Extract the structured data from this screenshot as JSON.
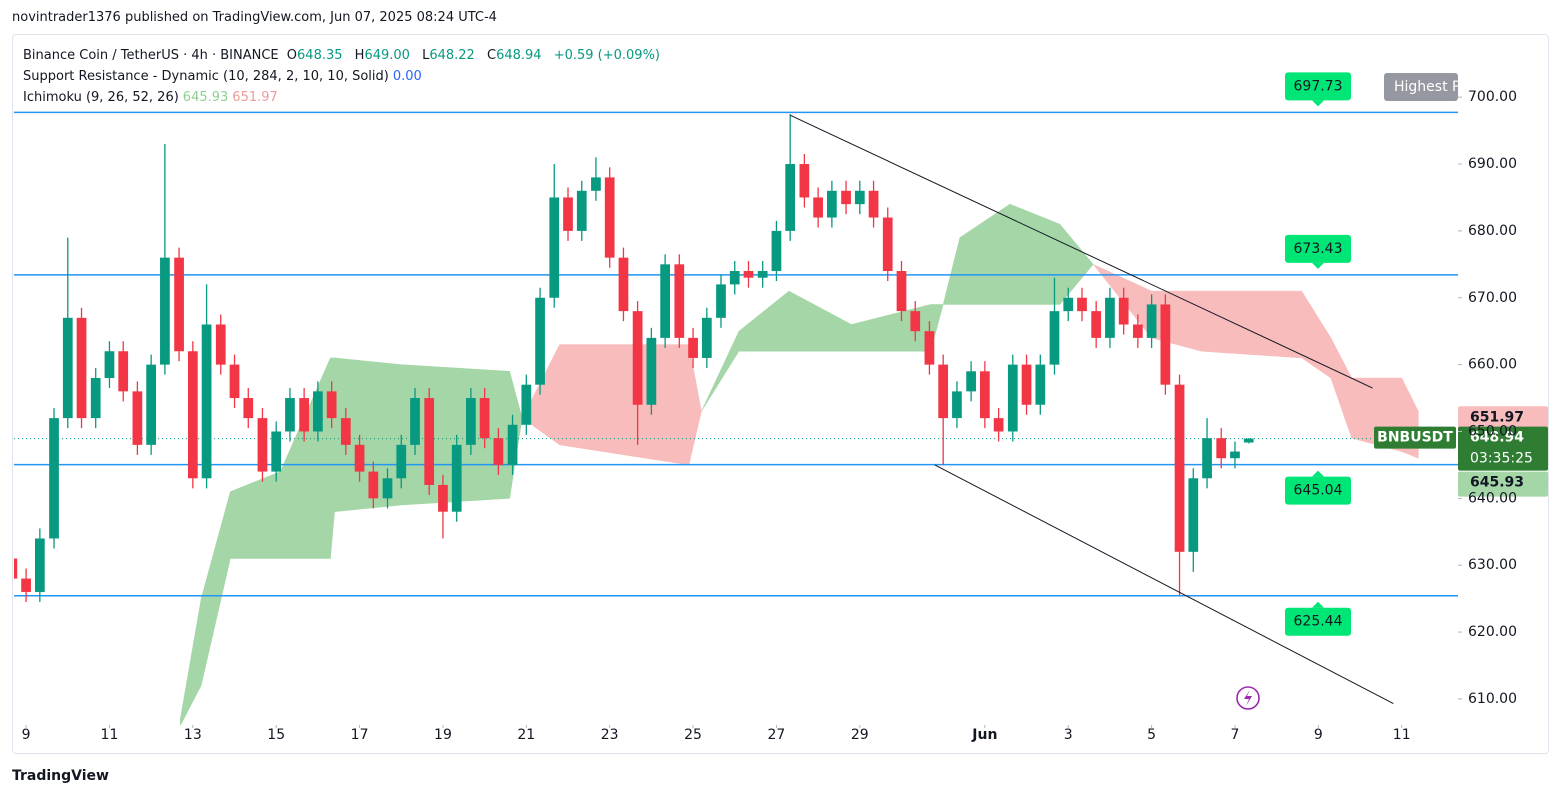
{
  "header": {
    "published": "novintrader1376 published on TradingView.com, Jun 07, 2025 08:24 UTC-4"
  },
  "legend": {
    "symbol": "Binance Coin / TetherUS · 4h · BINANCE",
    "ohlc_keys": [
      "O",
      "H",
      "L",
      "C"
    ],
    "ohlc_values": [
      "648.35",
      "649.00",
      "648.22",
      "648.94"
    ],
    "change": "+0.59 (+0.09%)",
    "sr_name": "Support Resistance - Dynamic (10, 284, 2, 10, 10, Solid)",
    "sr_value": "0.00",
    "ichimoku_name": "Ichimoku (9, 26, 52, 26)"
  },
  "footer": {
    "brand": "TradingView"
  },
  "chart_data": {
    "type": "candlestick",
    "symbol_tag": "BNBUSDT",
    "countdown": "03:35:25",
    "highest_label": "Highest P",
    "up_color": "#089981",
    "down_color": "#f23645",
    "xlim": [
      -0.29,
      34.35
    ],
    "ylim": [
      606.1,
      709.3
    ],
    "xticks": [
      {
        "value": 0,
        "label": "9"
      },
      {
        "value": 2,
        "label": "11"
      },
      {
        "value": 4,
        "label": "13"
      },
      {
        "value": 6,
        "label": "15"
      },
      {
        "value": 8,
        "label": "17"
      },
      {
        "value": 10,
        "label": "19"
      },
      {
        "value": 12,
        "label": "21"
      },
      {
        "value": 14,
        "label": "23"
      },
      {
        "value": 16,
        "label": "25"
      },
      {
        "value": 18,
        "label": "27"
      },
      {
        "value": 20,
        "label": "29"
      },
      {
        "value": 23,
        "label": "Jun"
      },
      {
        "value": 25,
        "label": "3"
      },
      {
        "value": 27,
        "label": "5"
      },
      {
        "value": 29,
        "label": "7"
      },
      {
        "value": 31,
        "label": "9"
      },
      {
        "value": 33,
        "label": "11"
      }
    ],
    "yticks": [
      {
        "value": 610,
        "label": "610.00"
      },
      {
        "value": 620,
        "label": "620.00"
      },
      {
        "value": 630,
        "label": "630.00"
      },
      {
        "value": 640,
        "label": "640.00"
      },
      {
        "value": 650,
        "label": "650.00"
      },
      {
        "value": 660,
        "label": "660.00"
      },
      {
        "value": 670,
        "label": "670.00"
      },
      {
        "value": 680,
        "label": "680.00"
      },
      {
        "value": 690,
        "label": "690.00"
      },
      {
        "value": 700,
        "label": "700.00"
      }
    ],
    "x": [
      -0.33,
      0,
      0.33,
      0.67,
      1,
      1.33,
      1.67,
      2,
      2.33,
      2.67,
      3,
      3.33,
      3.67,
      4,
      4.33,
      4.67,
      5,
      5.33,
      5.67,
      6,
      6.33,
      6.67,
      7,
      7.33,
      7.67,
      8,
      8.33,
      8.67,
      9,
      9.33,
      9.67,
      10,
      10.33,
      10.67,
      11,
      11.33,
      11.67,
      12,
      12.33,
      12.67,
      13,
      13.33,
      13.67,
      14,
      14.33,
      14.67,
      15,
      15.33,
      15.67,
      16,
      16.33,
      16.67,
      17,
      17.33,
      17.67,
      18,
      18.33,
      18.67,
      19,
      19.33,
      19.67,
      20,
      20.33,
      20.67,
      21,
      21.33,
      21.67,
      22,
      22.33,
      22.67,
      23,
      23.33,
      23.67,
      24,
      24.33,
      24.67,
      25,
      25.33,
      25.67,
      26,
      26.33,
      26.67,
      27,
      27.33,
      27.67,
      28,
      28.33,
      28.67,
      29,
      29.33
    ],
    "open": [
      631,
      628,
      626,
      634,
      652,
      667,
      652,
      658,
      662,
      656,
      648,
      660,
      676,
      662,
      643,
      666,
      660,
      655,
      652,
      644,
      650,
      655,
      650,
      656,
      652,
      648,
      644,
      640,
      643,
      648,
      655,
      642,
      638,
      648,
      655,
      649,
      645,
      651,
      657,
      670,
      685,
      680,
      686,
      688,
      676,
      668,
      654,
      664,
      675,
      664,
      661,
      667,
      672,
      674,
      673,
      674,
      680,
      690,
      685,
      682,
      686,
      684,
      686,
      682,
      674,
      668,
      665,
      660,
      652,
      656,
      659,
      652,
      650,
      660,
      654,
      660,
      668,
      670,
      668,
      664,
      670,
      666,
      664,
      669,
      657,
      632,
      643,
      649,
      646,
      648.35
    ],
    "high": [
      632.5,
      629.5,
      635.5,
      653.5,
      679,
      668.5,
      659.5,
      663.5,
      663.5,
      657.5,
      661.5,
      693,
      677.5,
      663.5,
      672,
      667.5,
      661.5,
      656.5,
      653.5,
      651.5,
      656.5,
      656.5,
      657.5,
      657.5,
      653.5,
      649.5,
      645.5,
      644.5,
      649.5,
      656.5,
      656.5,
      643.5,
      649.5,
      656.5,
      656.5,
      650.5,
      652.5,
      658.5,
      671.5,
      690,
      686.5,
      687.5,
      691,
      689.5,
      677.5,
      669.5,
      665.5,
      676.5,
      676.5,
      665.5,
      668.5,
      673.5,
      675.5,
      675.5,
      675.5,
      681.5,
      697.5,
      691.5,
      686.5,
      687.5,
      687.5,
      687.5,
      687.5,
      683.5,
      675.5,
      669.5,
      666.5,
      661.5,
      657.5,
      660.5,
      660.5,
      653.5,
      661.5,
      661.5,
      661.5,
      673,
      671.5,
      671.5,
      669.5,
      671.5,
      671.5,
      667.5,
      670.5,
      670.5,
      658.5,
      644.5,
      652,
      650.5,
      648.5,
      649
    ],
    "low": [
      626.5,
      624.5,
      624.5,
      632.5,
      650.5,
      650.5,
      650.5,
      656.5,
      654.5,
      646.5,
      646.5,
      658.5,
      660.5,
      641.5,
      641.5,
      658.5,
      653.5,
      650.5,
      642.5,
      642.5,
      648.5,
      648.5,
      648.5,
      650.5,
      646.5,
      642.5,
      638.5,
      638.5,
      641.5,
      646.5,
      640.5,
      634,
      636.5,
      646.5,
      647.5,
      643.5,
      643.5,
      649.5,
      655.5,
      668.5,
      678.5,
      678.5,
      684.5,
      674.5,
      666.5,
      648,
      652.5,
      662.5,
      662.5,
      659.5,
      659.5,
      665.5,
      670.5,
      671.5,
      671.5,
      672.5,
      678.5,
      683.5,
      680.5,
      680.5,
      682.5,
      682.5,
      680.5,
      672.5,
      666.5,
      663.5,
      658.5,
      645,
      650.5,
      654.5,
      650.5,
      648.5,
      648.5,
      652.5,
      652.5,
      658.5,
      666.5,
      666.5,
      662.5,
      662.5,
      664.5,
      662.5,
      662.5,
      655.5,
      625.5,
      629,
      641.5,
      644.5,
      644.5,
      648.22
    ],
    "close": [
      628,
      626,
      634,
      652,
      667,
      652,
      658,
      662,
      656,
      648,
      660,
      676,
      662,
      643,
      666,
      660,
      655,
      652,
      644,
      650,
      655,
      650,
      656,
      652,
      648,
      644,
      640,
      643,
      648,
      655,
      642,
      638,
      648,
      655,
      649,
      645,
      651,
      657,
      670,
      685,
      680,
      686,
      688,
      676,
      668,
      654,
      664,
      675,
      664,
      661,
      667,
      672,
      674,
      673,
      674,
      680,
      690,
      685,
      682,
      686,
      684,
      686,
      682,
      674,
      668,
      665,
      660,
      652,
      656,
      659,
      652,
      650,
      660,
      654,
      660,
      668,
      670,
      668,
      664,
      670,
      666,
      664,
      669,
      657,
      632,
      643,
      649,
      646,
      647,
      648.94
    ],
    "ichimoku": {
      "up_color": "#a5d6a7",
      "down_color": "#f8bcbc",
      "current_a": 645.93,
      "current_b": 651.97,
      "x": [
        3.7,
        4.2,
        4.9,
        6.1,
        7.3,
        7.4,
        9.0,
        11.6,
        11.9,
        12.8,
        15.9,
        16.2,
        17.1,
        18.3,
        19.8,
        21.7,
        22.0,
        22.4,
        23.6,
        24.8,
        25.6,
        27.0,
        28.2,
        30.6,
        31.3,
        31.8,
        33.0,
        33.4
      ],
      "span_a": [
        607,
        625,
        641,
        644,
        661,
        661,
        660,
        659,
        652,
        648,
        645,
        653,
        665,
        671,
        666,
        669,
        669,
        679,
        684,
        681,
        675,
        664,
        662,
        661,
        658,
        649,
        647,
        646
      ],
      "span_b": [
        606,
        612,
        631,
        631,
        631,
        638,
        639,
        640,
        652,
        663,
        663,
        653,
        662,
        662,
        662,
        662,
        669,
        669,
        669,
        669,
        675,
        671,
        671,
        671,
        664,
        658,
        658,
        653
      ]
    },
    "levels": [
      697.73,
      673.43,
      645.04,
      625.44
    ],
    "level_color": "#2196f3",
    "level_label_color": "#00e676",
    "trendlines": [
      {
        "x": [
          18.33,
          32.3
        ],
        "y": [
          697.3,
          656.5
        ]
      },
      {
        "x": [
          21.8,
          32.8
        ],
        "y": [
          645,
          609.3
        ]
      }
    ]
  }
}
